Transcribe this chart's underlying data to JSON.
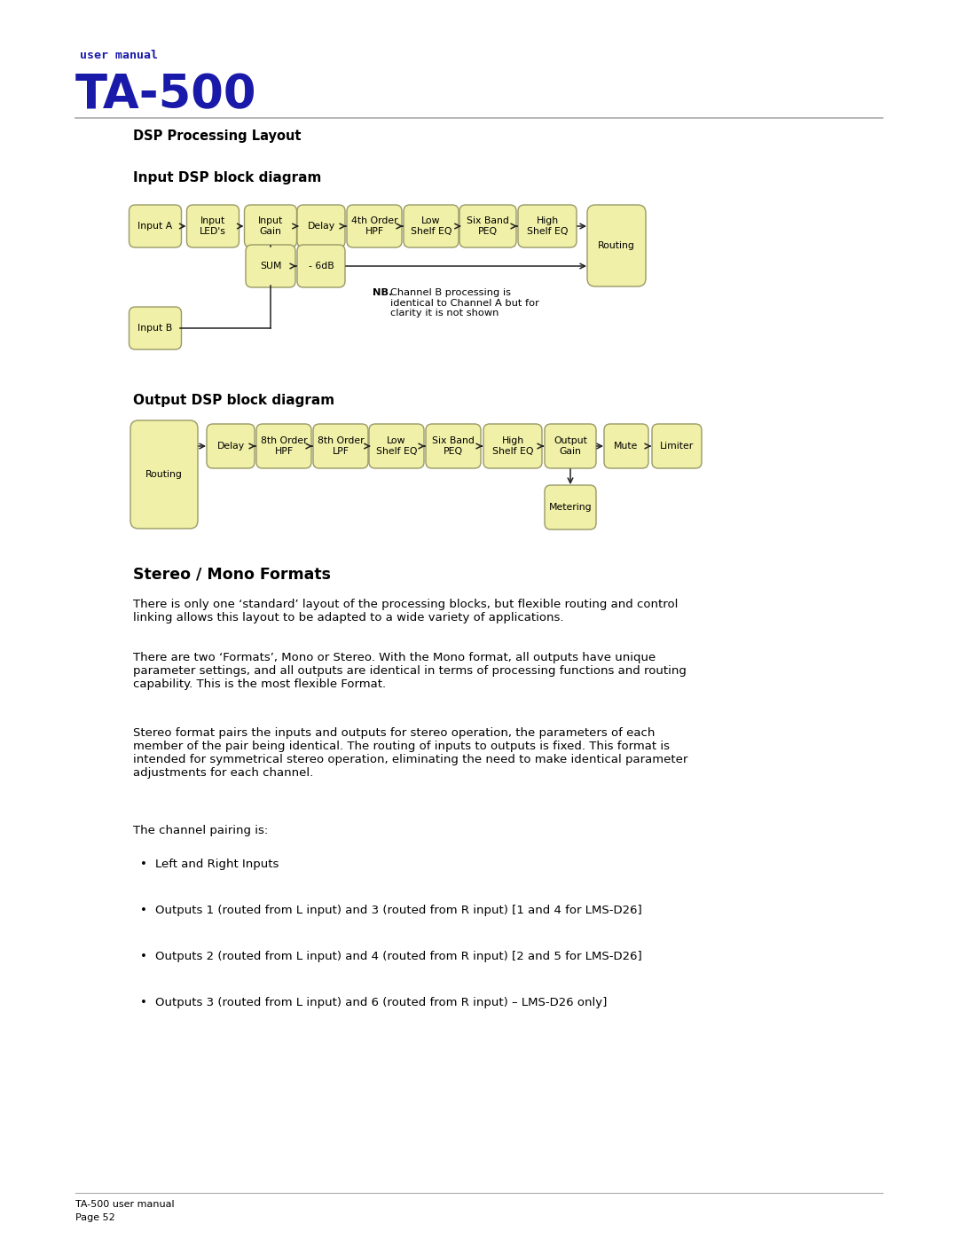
{
  "page_bg": "#ffffff",
  "header_color": "#1a1aaa",
  "title_small": "user manual",
  "title_large": "TA-500",
  "section_title": "DSP Processing Layout",
  "input_diagram_title": "Input DSP block diagram",
  "output_diagram_title": "Output DSP block diagram",
  "stereo_title": "Stereo / Mono Formats",
  "box_fill": "#f0f0a8",
  "box_edge": "#999966",
  "box_text_color": "#000000",
  "input_blocks_row1": [
    "Input A",
    "Input\nLED's",
    "Input\nGain",
    "Delay",
    "4th Order\nHPF",
    "Low\nShelf EQ",
    "Six Band\nPEQ",
    "High\nShelf EQ"
  ],
  "input_blocks_row2": [
    "SUM",
    "- 6dB"
  ],
  "input_block_routing": "Routing",
  "input_block_b": "Input B",
  "output_blocks": [
    "Delay",
    "8th Order\nHPF",
    "8th Order\nLPF",
    "Low\nShelf EQ",
    "Six Band\nPEQ",
    "High\nShelf EQ",
    "Output\nGain",
    "Mute",
    "Limiter"
  ],
  "output_block_routing": "Routing",
  "output_block_metering": "Metering",
  "nb_bold": "NB.",
  "nb_rest": " Channel B processing is\nidentical to Channel A but for\nclarity it is not shown",
  "body_text_1": "There is only one ‘standard’ layout of the processing blocks, but flexible routing and control\nlinking allows this layout to be adapted to a wide variety of applications.",
  "body_text_2": "There are two ‘Formats’, Mono or Stereo. With the Mono format, all outputs have unique\nparameter settings, and all outputs are identical in terms of processing functions and routing\ncapability. This is the most flexible Format.",
  "body_text_3": "Stereo format pairs the inputs and outputs for stereo operation, the parameters of each\nmember of the pair being identical. The routing of inputs to outputs is fixed. This format is\nintended for symmetrical stereo operation, eliminating the need to make identical parameter\nadjustments for each channel.",
  "body_text_4": "The channel pairing is:",
  "bullet_1": "Left and Right Inputs",
  "bullet_2": "Outputs 1 (routed from L input) and 3 (routed from R input) [1 and 4 for LMS-D26]",
  "bullet_3": "Outputs 2 (routed from L input) and 4 (routed from R input) [2 and 5 for LMS-D26]",
  "bullet_4": "Outputs 3 (routed from L input) and 6 (routed from R input) – LMS-D26 only]",
  "footer_text1": "TA-500 user manual",
  "footer_text2": "Page 52"
}
